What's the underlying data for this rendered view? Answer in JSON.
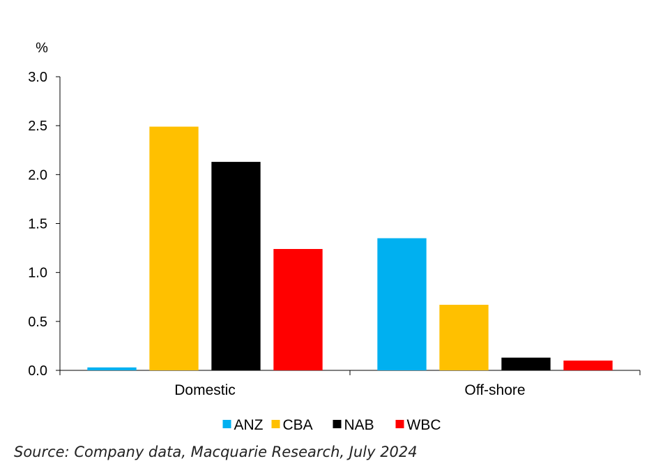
{
  "chart_data": {
    "type": "bar",
    "unit_label": "%",
    "categories": [
      "Domestic",
      "Off-shore"
    ],
    "series": [
      {
        "name": "ANZ",
        "color": "#00B0F0",
        "values": [
          0.03,
          1.35
        ]
      },
      {
        "name": "CBA",
        "color": "#FFC000",
        "values": [
          2.49,
          0.67
        ]
      },
      {
        "name": "NAB",
        "color": "#000000",
        "values": [
          2.13,
          0.13
        ]
      },
      {
        "name": "WBC",
        "color": "#FF0000",
        "values": [
          1.24,
          0.1
        ]
      }
    ],
    "ylim": [
      0,
      3.0
    ],
    "yticks": [
      "0.0",
      "0.5",
      "1.0",
      "1.5",
      "2.0",
      "2.5",
      "3.0"
    ],
    "grid": false,
    "legend_position": "bottom"
  },
  "source": "Source: Company data, Macquarie Research, July 2024"
}
